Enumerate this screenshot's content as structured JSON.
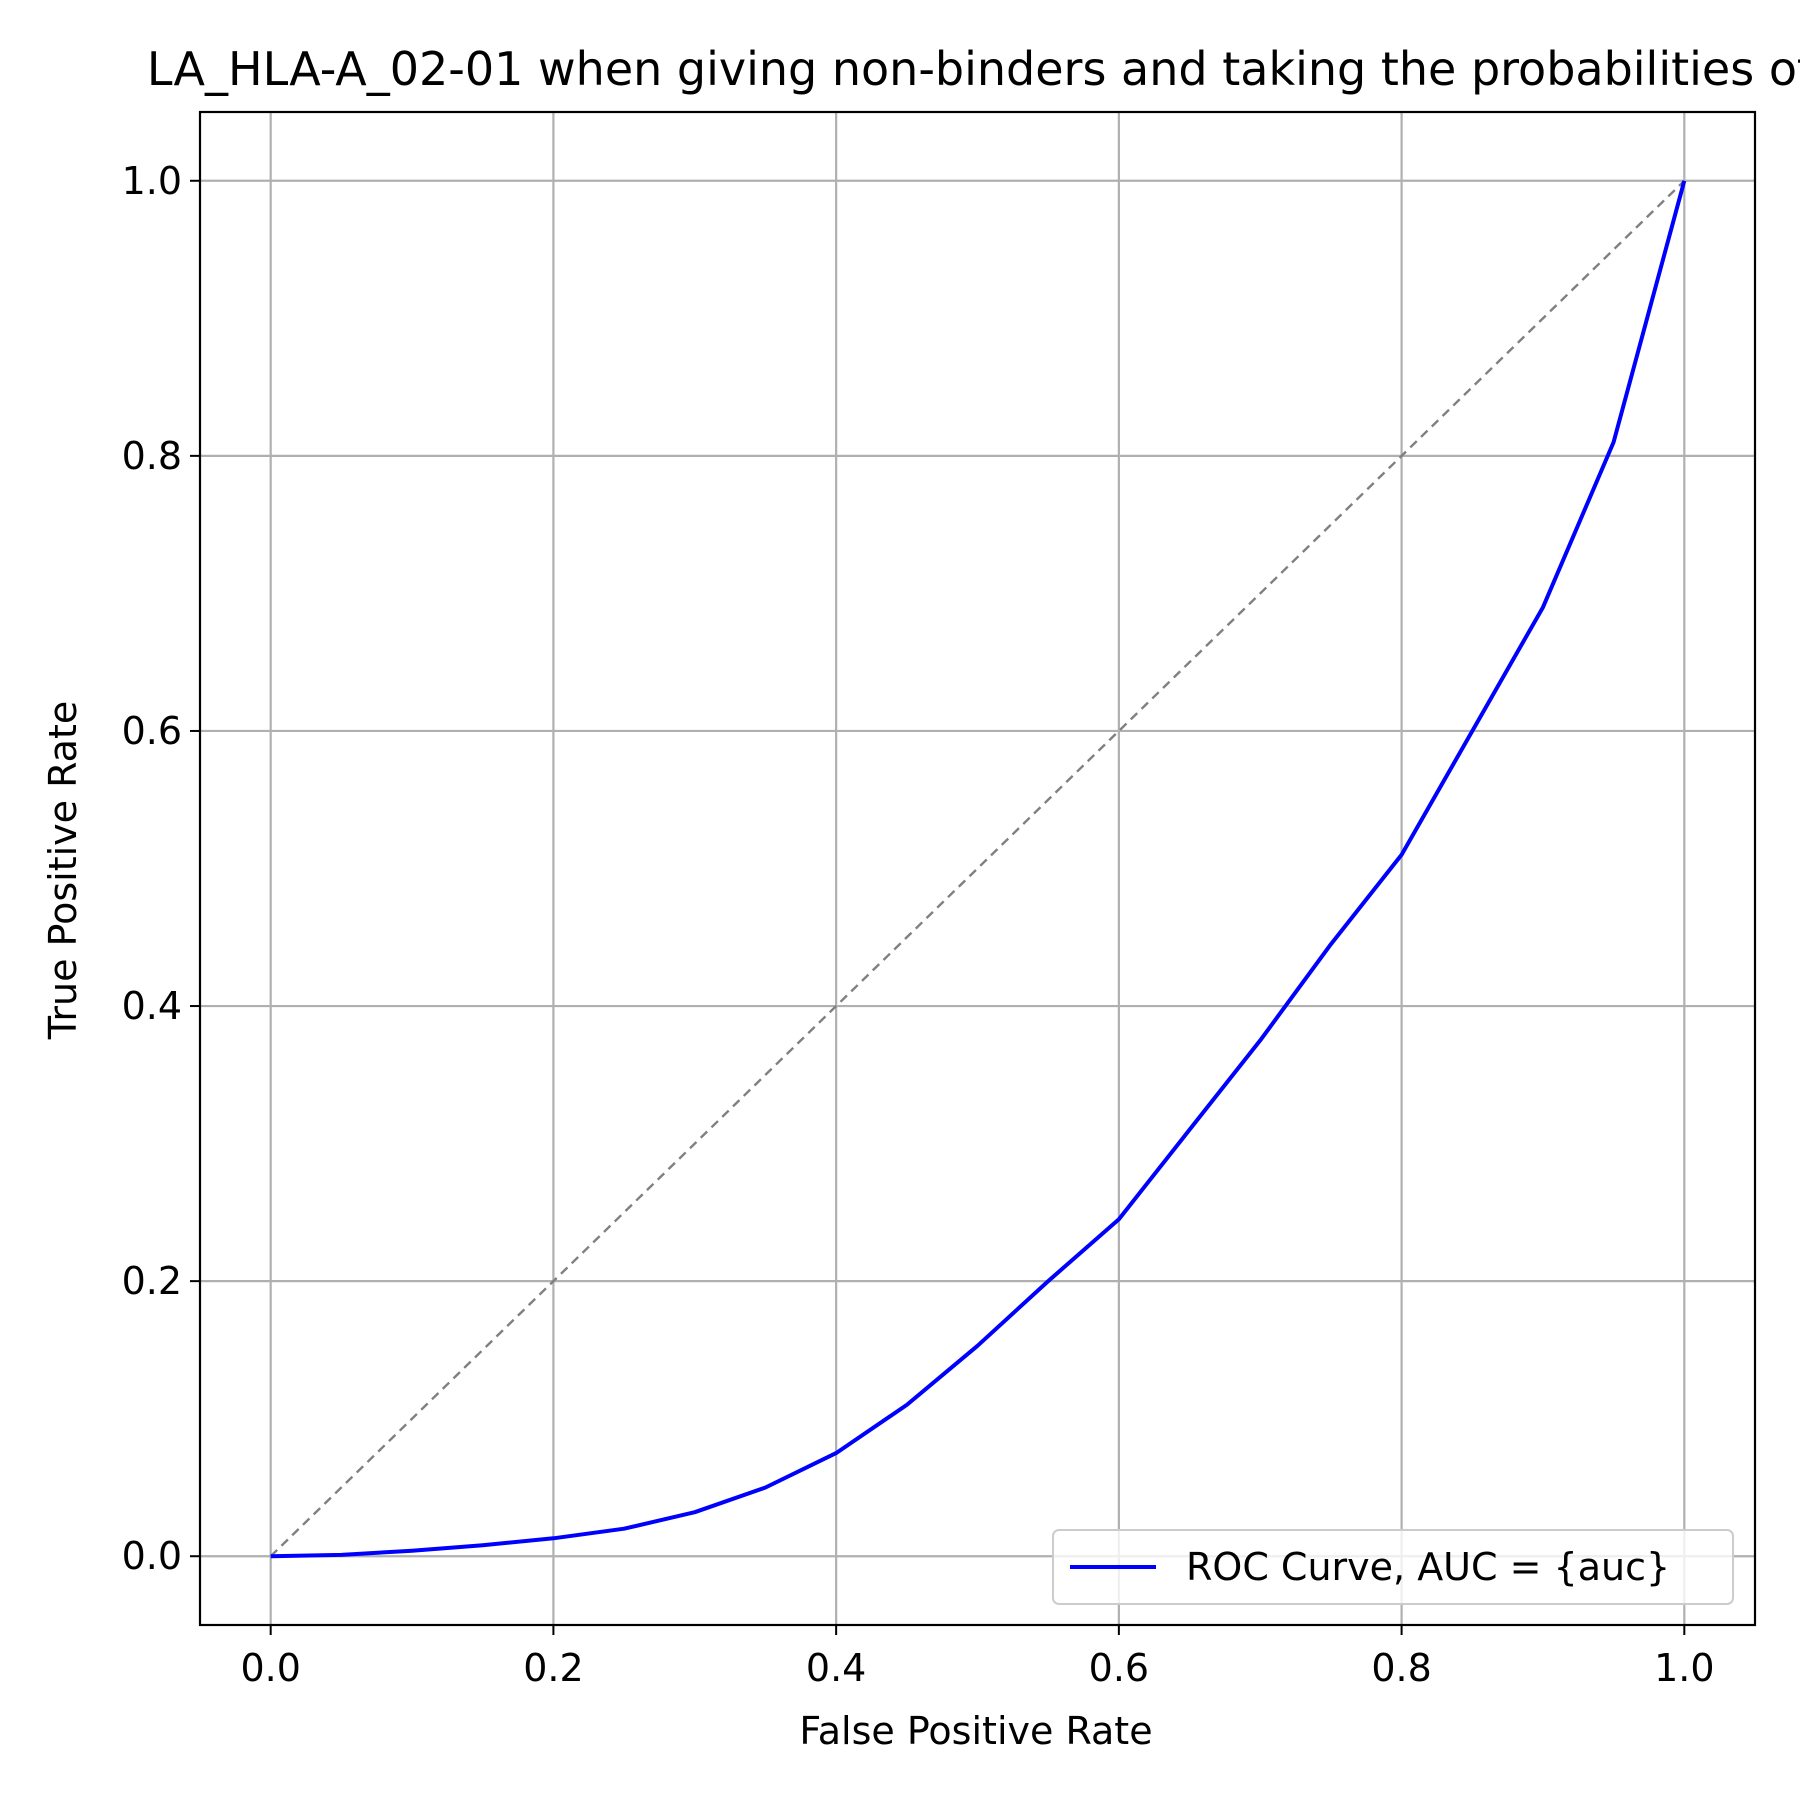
{
  "chart_data": {
    "type": "line",
    "title": "LA_HLA-A_02-01 when giving non-binders and taking the probabilities of",
    "xlabel": "False Positive Rate",
    "ylabel": "True Positive Rate",
    "xlim": [
      -0.05,
      1.05
    ],
    "ylim": [
      -0.05,
      1.05
    ],
    "xticks": [
      0.0,
      0.2,
      0.4,
      0.6,
      0.8,
      1.0
    ],
    "yticks": [
      0.0,
      0.2,
      0.4,
      0.6,
      0.8,
      1.0
    ],
    "tick_labels_x": [
      "0.0",
      "0.2",
      "0.4",
      "0.6",
      "0.8",
      "1.0"
    ],
    "tick_labels_y": [
      "0.0",
      "0.2",
      "0.4",
      "0.6",
      "0.8",
      "1.0"
    ],
    "grid": true,
    "legend_position": "lower-right",
    "series": [
      {
        "name": "ROC Curve, AUC = {auc}",
        "color": "#0000ff",
        "style": "solid",
        "x": [
          0.0,
          0.05,
          0.1,
          0.15,
          0.2,
          0.25,
          0.3,
          0.35,
          0.4,
          0.45,
          0.5,
          0.55,
          0.6,
          0.65,
          0.7,
          0.75,
          0.8,
          0.85,
          0.9,
          0.95,
          1.0
        ],
        "y": [
          0.0,
          0.001,
          0.004,
          0.008,
          0.013,
          0.02,
          0.032,
          0.05,
          0.075,
          0.11,
          0.153,
          0.2,
          0.245,
          0.31,
          0.375,
          0.445,
          0.51,
          0.6,
          0.69,
          0.81,
          1.0
        ]
      },
      {
        "name": "",
        "color": "#808080",
        "style": "dashed",
        "x": [
          0.0,
          1.0
        ],
        "y": [
          0.0,
          1.0
        ]
      }
    ]
  }
}
